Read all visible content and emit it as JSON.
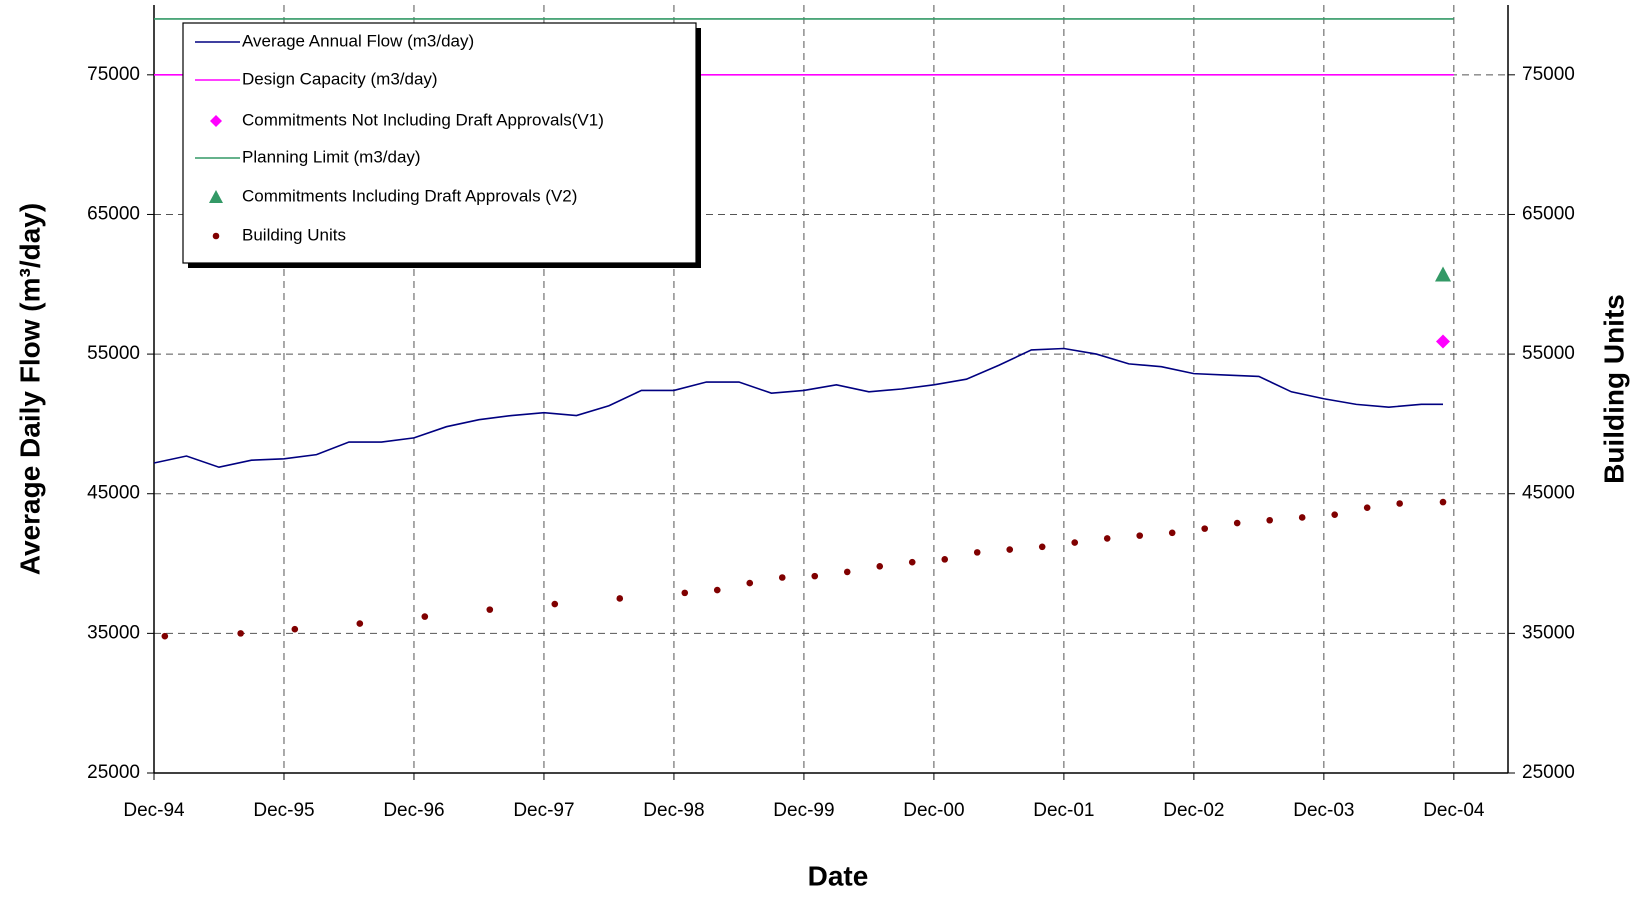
{
  "chart_data": {
    "type": "line",
    "x_label": "Date",
    "y_label": "Average Daily Flow (m³/day)",
    "y2_label": "Building Units",
    "xlim": [
      "Dec-94",
      "May-05"
    ],
    "xticks": [
      "Dec-94",
      "Dec-95",
      "Dec-96",
      "Dec-97",
      "Dec-98",
      "Dec-99",
      "Dec-00",
      "Dec-01",
      "Dec-02",
      "Dec-03",
      "Dec-04"
    ],
    "ylim": [
      25000,
      80000
    ],
    "yticks": [
      25000,
      35000,
      45000,
      55000,
      65000,
      75000
    ],
    "y2lim": [
      25000,
      80000
    ],
    "y2ticks": [
      25000,
      35000,
      45000,
      55000,
      65000,
      75000
    ],
    "grid": true,
    "legend": "upper left",
    "series": [
      {
        "name": "Average Annual Flow (m3/day)",
        "color": "#000080",
        "style": "line",
        "x": [
          "Dec-94",
          "Mar-95",
          "Jun-95",
          "Sep-95",
          "Dec-95",
          "Mar-96",
          "Jun-96",
          "Sep-96",
          "Dec-96",
          "Mar-97",
          "Jun-97",
          "Sep-97",
          "Dec-97",
          "Mar-98",
          "Jun-98",
          "Sep-98",
          "Dec-98",
          "Mar-99",
          "Jun-99",
          "Sep-99",
          "Dec-99",
          "Mar-00",
          "Jun-00",
          "Sep-00",
          "Dec-00",
          "Mar-01",
          "Jun-01",
          "Sep-01",
          "Dec-01",
          "Mar-02",
          "Jun-02",
          "Sep-02",
          "Dec-02",
          "Mar-03",
          "Jun-03",
          "Sep-03",
          "Dec-03",
          "Mar-04",
          "Jun-04",
          "Sep-04",
          "Nov-04"
        ],
        "values": [
          47200,
          47700,
          46900,
          47400,
          47500,
          47800,
          48700,
          48700,
          49000,
          49800,
          50300,
          50600,
          50800,
          50600,
          51300,
          52400,
          52400,
          53000,
          53000,
          52200,
          52400,
          52800,
          52300,
          52500,
          52800,
          53200,
          54200,
          55300,
          55400,
          55000,
          54300,
          54100,
          53600,
          53500,
          53400,
          52300,
          51800,
          51400,
          51200,
          51400,
          51400
        ]
      },
      {
        "name": "Design Capacity (m3/day)",
        "color": "#ff00ff",
        "style": "line",
        "x": [
          "Dec-94",
          "Dec-04"
        ],
        "values": [
          75000,
          75000
        ]
      },
      {
        "name": "Commitments Not Including Draft Approvals(V1)",
        "color": "#ff00ff",
        "style": "diamond",
        "x": [
          "Nov-04"
        ],
        "values": [
          55900
        ]
      },
      {
        "name": "Planning Limit (m3/day)",
        "color": "#339966",
        "style": "line",
        "x": [
          "Dec-94",
          "Dec-04"
        ],
        "values": [
          79000,
          79000
        ]
      },
      {
        "name": "Commitments Including Draft Approvals (V2)",
        "color": "#339966",
        "style": "triangle",
        "x": [
          "Nov-04"
        ],
        "values": [
          60700
        ]
      },
      {
        "name": "Building Units",
        "color": "#800000",
        "style": "dot",
        "axis": "y2",
        "x": [
          "Jan-95",
          "Aug-95",
          "Jan-96",
          "Jul-96",
          "Jan-97",
          "Jul-97",
          "Jan-98",
          "Jul-98",
          "Jan-99",
          "Apr-99",
          "Jul-99",
          "Oct-99",
          "Jan-00",
          "Apr-00",
          "Jul-00",
          "Oct-00",
          "Jan-01",
          "Apr-01",
          "Jul-01",
          "Oct-01",
          "Jan-02",
          "Apr-02",
          "Jul-02",
          "Oct-02",
          "Jan-03",
          "Apr-03",
          "Jul-03",
          "Oct-03",
          "Jan-04",
          "Apr-04",
          "Jul-04",
          "Nov-04"
        ],
        "values": [
          34800,
          35000,
          35300,
          35700,
          36200,
          36700,
          37100,
          37500,
          37900,
          38100,
          38600,
          39000,
          39100,
          39400,
          39800,
          40100,
          40300,
          40800,
          41000,
          41200,
          41500,
          41800,
          42000,
          42200,
          42500,
          42900,
          43100,
          43300,
          43500,
          44000,
          44300,
          44400
        ]
      }
    ]
  }
}
